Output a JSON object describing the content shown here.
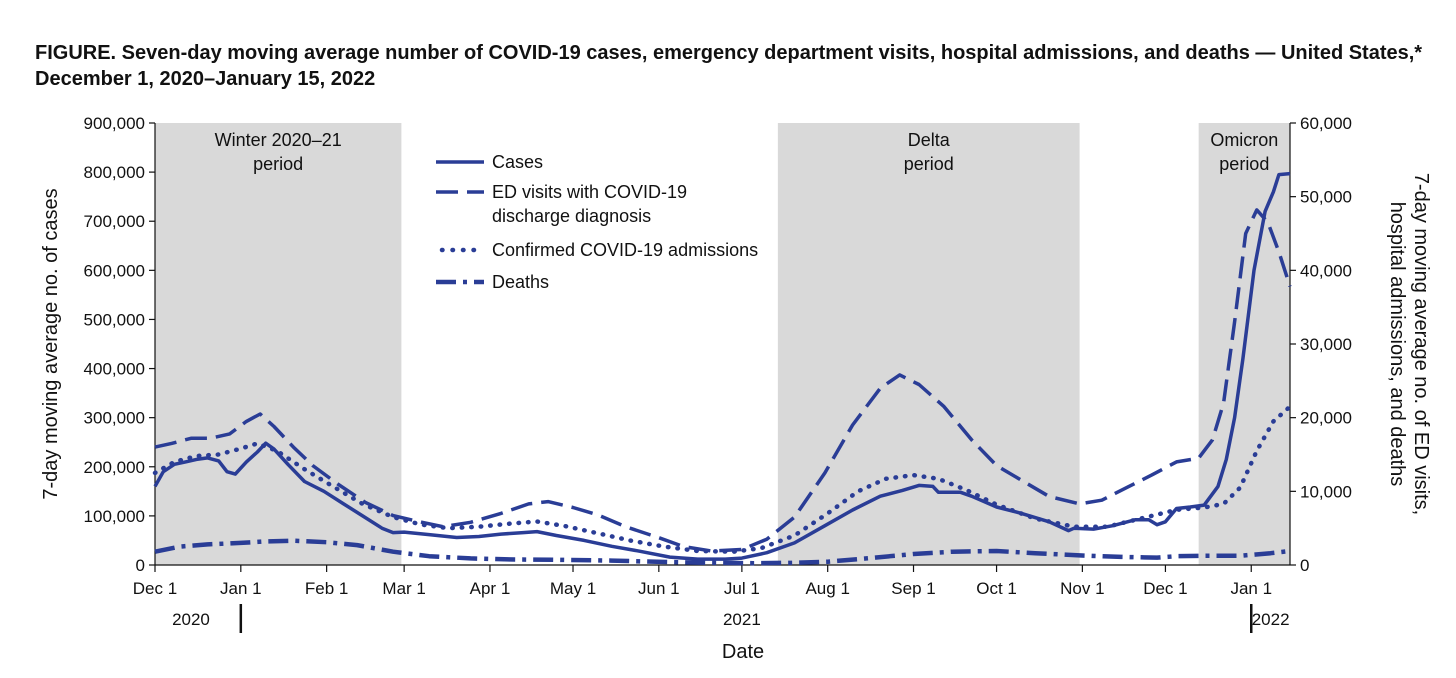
{
  "chart_data": {
    "type": "line",
    "title": "FIGURE. Seven-day moving average number of COVID-19 cases, emergency department visits, hospital admissions, and deaths — United States,* December 1, 2020–January 15, 2022",
    "xlabel": "Date",
    "ylabel_left": "7-day moving average no. of cases",
    "ylabel_right": "7-day moving average no. of ED visits, hospital admissions, and deaths",
    "ylim_left": [
      0,
      900000
    ],
    "ylim_right": [
      0,
      60000
    ],
    "x_range": [
      "2020-12-01",
      "2022-01-15"
    ],
    "grid": false,
    "legend_position": "top-center",
    "yticks_left": [
      "0",
      "100,000",
      "200,000",
      "300,000",
      "400,000",
      "500,000",
      "600,000",
      "700,000",
      "800,000",
      "900,000"
    ],
    "yticks_right": [
      "0",
      "10,000",
      "20,000",
      "30,000",
      "40,000",
      "50,000",
      "60,000"
    ],
    "xticks": [
      {
        "label": "Dec 1",
        "date": "2020-12-01"
      },
      {
        "label": "Jan 1",
        "date": "2021-01-01"
      },
      {
        "label": "Feb 1",
        "date": "2021-02-01"
      },
      {
        "label": "Mar 1",
        "date": "2021-03-01"
      },
      {
        "label": "Apr 1",
        "date": "2021-04-01"
      },
      {
        "label": "May 1",
        "date": "2021-05-01"
      },
      {
        "label": "Jun 1",
        "date": "2021-06-01"
      },
      {
        "label": "Jul 1",
        "date": "2021-07-01"
      },
      {
        "label": "Aug 1",
        "date": "2021-08-01"
      },
      {
        "label": "Sep 1",
        "date": "2021-09-01"
      },
      {
        "label": "Oct 1",
        "date": "2021-10-01"
      },
      {
        "label": "Nov 1",
        "date": "2021-11-01"
      },
      {
        "label": "Dec 1",
        "date": "2021-12-01"
      },
      {
        "label": "Jan 1",
        "date": "2022-01-01"
      }
    ],
    "year_labels": [
      {
        "label": "2020",
        "date": "2020-12-14"
      },
      {
        "label": "2021",
        "date": "2021-07-01"
      },
      {
        "label": "2022",
        "date": "2022-01-08"
      }
    ],
    "year_dividers": [
      "2021-01-01",
      "2022-01-01"
    ],
    "periods": [
      {
        "line1": "Winter 2020–21",
        "line2": "period",
        "start": "2020-12-01",
        "end": "2021-02-28"
      },
      {
        "line1": "Delta",
        "line2": "period",
        "start": "2021-07-14",
        "end": "2021-10-31"
      },
      {
        "line1": "Omicron",
        "line2": "period",
        "start": "2021-12-13",
        "end": "2022-01-15"
      }
    ],
    "color": "#2a3d96",
    "series": [
      {
        "name": "Cases",
        "axis": "left",
        "style": "solid",
        "points": [
          [
            "2020-12-01",
            160000
          ],
          [
            "2020-12-04",
            190000
          ],
          [
            "2020-12-08",
            205000
          ],
          [
            "2020-12-12",
            210000
          ],
          [
            "2020-12-16",
            215000
          ],
          [
            "2020-12-20",
            218000
          ],
          [
            "2020-12-24",
            212000
          ],
          [
            "2020-12-27",
            190000
          ],
          [
            "2020-12-30",
            185000
          ],
          [
            "2021-01-03",
            210000
          ],
          [
            "2021-01-07",
            230000
          ],
          [
            "2021-01-10",
            248000
          ],
          [
            "2021-01-13",
            236000
          ],
          [
            "2021-01-18",
            205000
          ],
          [
            "2021-01-24",
            170000
          ],
          [
            "2021-01-31",
            150000
          ],
          [
            "2021-02-07",
            125000
          ],
          [
            "2021-02-14",
            100000
          ],
          [
            "2021-02-21",
            75000
          ],
          [
            "2021-02-25",
            66000
          ],
          [
            "2021-03-01",
            67000
          ],
          [
            "2021-03-10",
            62000
          ],
          [
            "2021-03-20",
            56000
          ],
          [
            "2021-03-28",
            58000
          ],
          [
            "2021-04-05",
            63000
          ],
          [
            "2021-04-13",
            66000
          ],
          [
            "2021-04-18",
            68000
          ],
          [
            "2021-04-25",
            60000
          ],
          [
            "2021-05-05",
            50000
          ],
          [
            "2021-05-15",
            38000
          ],
          [
            "2021-05-25",
            28000
          ],
          [
            "2021-06-05",
            16000
          ],
          [
            "2021-06-15",
            12000
          ],
          [
            "2021-06-25",
            12000
          ],
          [
            "2021-07-01",
            14000
          ],
          [
            "2021-07-10",
            25000
          ],
          [
            "2021-07-20",
            45000
          ],
          [
            "2021-07-31",
            80000
          ],
          [
            "2021-08-10",
            112000
          ],
          [
            "2021-08-20",
            140000
          ],
          [
            "2021-08-28",
            152000
          ],
          [
            "2021-09-03",
            162000
          ],
          [
            "2021-09-08",
            160000
          ],
          [
            "2021-09-10",
            148000
          ],
          [
            "2021-09-18",
            148000
          ],
          [
            "2021-09-22",
            140000
          ],
          [
            "2021-10-01",
            118000
          ],
          [
            "2021-10-10",
            105000
          ],
          [
            "2021-10-20",
            88000
          ],
          [
            "2021-10-27",
            70000
          ],
          [
            "2021-10-29",
            75000
          ],
          [
            "2021-11-05",
            73000
          ],
          [
            "2021-11-12",
            80000
          ],
          [
            "2021-11-20",
            92000
          ],
          [
            "2021-11-25",
            92000
          ],
          [
            "2021-11-28",
            82000
          ],
          [
            "2021-12-01",
            88000
          ],
          [
            "2021-12-05",
            115000
          ],
          [
            "2021-12-10",
            118000
          ],
          [
            "2021-12-15",
            122000
          ],
          [
            "2021-12-20",
            160000
          ],
          [
            "2021-12-23",
            215000
          ],
          [
            "2021-12-26",
            300000
          ],
          [
            "2021-12-29",
            420000
          ],
          [
            "2022-01-02",
            600000
          ],
          [
            "2022-01-06",
            720000
          ],
          [
            "2022-01-09",
            760000
          ],
          [
            "2022-01-11",
            795000
          ],
          [
            "2022-01-15",
            797000
          ]
        ]
      },
      {
        "name": "ED visits with COVID-19 discharge diagnosis",
        "axis": "right",
        "style": "dashed",
        "points": [
          [
            "2020-12-01",
            16000
          ],
          [
            "2020-12-07",
            16500
          ],
          [
            "2020-12-14",
            17200
          ],
          [
            "2020-12-21",
            17200
          ],
          [
            "2020-12-28",
            17800
          ],
          [
            "2021-01-03",
            19500
          ],
          [
            "2021-01-08",
            20500
          ],
          [
            "2021-01-13",
            18800
          ],
          [
            "2021-01-20",
            16000
          ],
          [
            "2021-01-27",
            13500
          ],
          [
            "2021-02-05",
            11000
          ],
          [
            "2021-02-15",
            8500
          ],
          [
            "2021-02-25",
            6700
          ],
          [
            "2021-03-05",
            6000
          ],
          [
            "2021-03-15",
            5200
          ],
          [
            "2021-03-25",
            5800
          ],
          [
            "2021-04-05",
            7000
          ],
          [
            "2021-04-15",
            8300
          ],
          [
            "2021-04-22",
            8600
          ],
          [
            "2021-05-01",
            7800
          ],
          [
            "2021-05-10",
            6800
          ],
          [
            "2021-05-20",
            5200
          ],
          [
            "2021-06-01",
            3700
          ],
          [
            "2021-06-10",
            2500
          ],
          [
            "2021-06-20",
            1900
          ],
          [
            "2021-07-01",
            2100
          ],
          [
            "2021-07-10",
            3500
          ],
          [
            "2021-07-20",
            6500
          ],
          [
            "2021-07-31",
            12500
          ],
          [
            "2021-08-10",
            19000
          ],
          [
            "2021-08-20",
            24000
          ],
          [
            "2021-08-27",
            25800
          ],
          [
            "2021-09-03",
            24500
          ],
          [
            "2021-09-12",
            21500
          ],
          [
            "2021-09-22",
            17000
          ],
          [
            "2021-10-01",
            13500
          ],
          [
            "2021-10-10",
            11500
          ],
          [
            "2021-10-20",
            9300
          ],
          [
            "2021-10-31",
            8300
          ],
          [
            "2021-11-08",
            8800
          ],
          [
            "2021-11-17",
            10500
          ],
          [
            "2021-11-26",
            12200
          ],
          [
            "2021-12-05",
            14000
          ],
          [
            "2021-12-13",
            14500
          ],
          [
            "2021-12-18",
            17000
          ],
          [
            "2021-12-22",
            22000
          ],
          [
            "2021-12-26",
            33000
          ],
          [
            "2021-12-30",
            45000
          ],
          [
            "2022-01-03",
            48200
          ],
          [
            "2022-01-07",
            46500
          ],
          [
            "2022-01-11",
            42500
          ],
          [
            "2022-01-15",
            37800
          ]
        ]
      },
      {
        "name": "Confirmed COVID-19 admissions",
        "axis": "right",
        "style": "dotted",
        "points": [
          [
            "2020-12-01",
            12500
          ],
          [
            "2020-12-08",
            14000
          ],
          [
            "2020-12-16",
            14800
          ],
          [
            "2020-12-24",
            15000
          ],
          [
            "2021-01-01",
            15800
          ],
          [
            "2021-01-07",
            16500
          ],
          [
            "2021-01-14",
            15500
          ],
          [
            "2021-01-24",
            13000
          ],
          [
            "2021-02-04",
            10500
          ],
          [
            "2021-02-14",
            8300
          ],
          [
            "2021-02-25",
            6500
          ],
          [
            "2021-03-07",
            5500
          ],
          [
            "2021-03-17",
            5000
          ],
          [
            "2021-03-28",
            5200
          ],
          [
            "2021-04-08",
            5600
          ],
          [
            "2021-04-18",
            5900
          ],
          [
            "2021-04-28",
            5300
          ],
          [
            "2021-05-10",
            4300
          ],
          [
            "2021-05-22",
            3300
          ],
          [
            "2021-06-03",
            2500
          ],
          [
            "2021-06-15",
            1900
          ],
          [
            "2021-06-28",
            1800
          ],
          [
            "2021-07-08",
            2300
          ],
          [
            "2021-07-20",
            4000
          ],
          [
            "2021-08-01",
            7000
          ],
          [
            "2021-08-12",
            10000
          ],
          [
            "2021-08-22",
            11700
          ],
          [
            "2021-09-01",
            12200
          ],
          [
            "2021-09-10",
            11700
          ],
          [
            "2021-09-20",
            10200
          ],
          [
            "2021-10-01",
            8200
          ],
          [
            "2021-10-15",
            6300
          ],
          [
            "2021-10-29",
            5200
          ],
          [
            "2021-11-10",
            5200
          ],
          [
            "2021-11-22",
            6300
          ],
          [
            "2021-12-05",
            7500
          ],
          [
            "2021-12-15",
            7800
          ],
          [
            "2021-12-22",
            8300
          ],
          [
            "2021-12-28",
            10500
          ],
          [
            "2022-01-03",
            15500
          ],
          [
            "2022-01-09",
            19500
          ],
          [
            "2022-01-15",
            21500
          ]
        ]
      },
      {
        "name": "Deaths",
        "axis": "right",
        "style": "dashdot",
        "points": [
          [
            "2020-12-01",
            1800
          ],
          [
            "2020-12-10",
            2500
          ],
          [
            "2020-12-20",
            2800
          ],
          [
            "2021-01-01",
            3000
          ],
          [
            "2021-01-10",
            3200
          ],
          [
            "2021-01-20",
            3300
          ],
          [
            "2021-02-01",
            3100
          ],
          [
            "2021-02-12",
            2700
          ],
          [
            "2021-02-25",
            1800
          ],
          [
            "2021-03-10",
            1200
          ],
          [
            "2021-03-25",
            900
          ],
          [
            "2021-04-10",
            750
          ],
          [
            "2021-04-25",
            700
          ],
          [
            "2021-05-15",
            600
          ],
          [
            "2021-06-05",
            400
          ],
          [
            "2021-06-20",
            300
          ],
          [
            "2021-07-05",
            250
          ],
          [
            "2021-07-20",
            300
          ],
          [
            "2021-08-01",
            450
          ],
          [
            "2021-08-15",
            900
          ],
          [
            "2021-09-01",
            1500
          ],
          [
            "2021-09-15",
            1800
          ],
          [
            "2021-10-01",
            1900
          ],
          [
            "2021-10-15",
            1600
          ],
          [
            "2021-10-31",
            1300
          ],
          [
            "2021-11-15",
            1100
          ],
          [
            "2021-11-28",
            1000
          ],
          [
            "2021-12-05",
            1200
          ],
          [
            "2021-12-15",
            1250
          ],
          [
            "2021-12-28",
            1250
          ],
          [
            "2022-01-08",
            1600
          ],
          [
            "2022-01-15",
            1900
          ]
        ]
      }
    ]
  }
}
